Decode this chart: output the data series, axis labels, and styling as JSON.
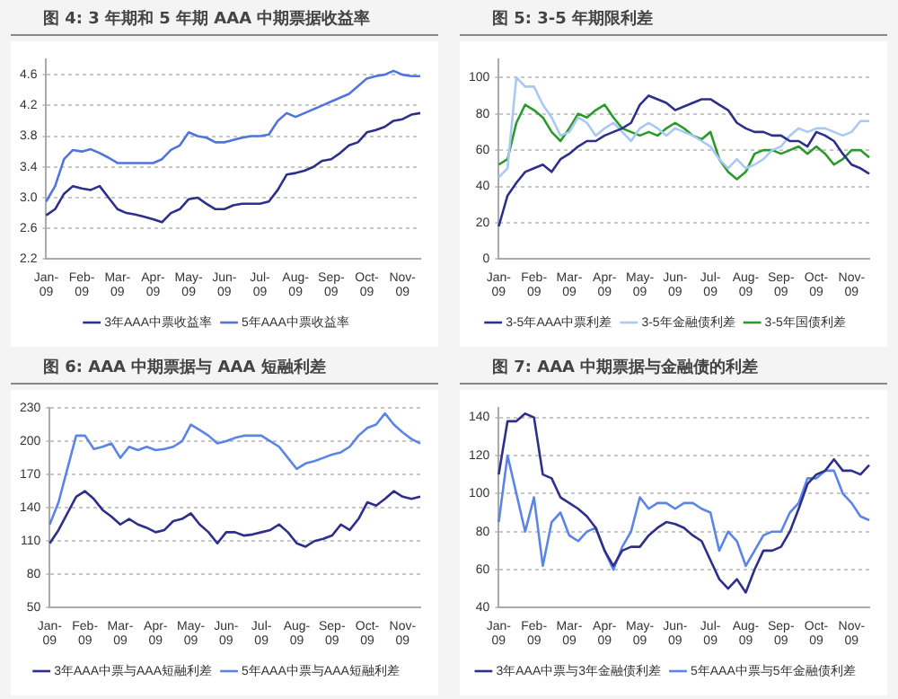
{
  "chart_data": [
    {
      "type": "line",
      "title": "图 4: 3 年期和 5 年期 AAA 中期票据收益率",
      "categories": [
        "Jan-09",
        null,
        null,
        null,
        "Feb-09",
        null,
        null,
        null,
        "Mar-09",
        null,
        null,
        null,
        "Apr-09",
        null,
        null,
        null,
        "May-09",
        null,
        null,
        null,
        "Jun-09",
        null,
        null,
        null,
        "Jul-09",
        null,
        null,
        null,
        "Aug-09",
        null,
        null,
        null,
        "Sep-09",
        null,
        null,
        null,
        "Oct-09",
        null,
        null,
        null,
        "Nov-09",
        null,
        null
      ],
      "series": [
        {
          "name": "3年AAA中票收益率",
          "color": "#2e2f8a",
          "values": [
            2.77,
            2.85,
            3.05,
            3.15,
            3.12,
            3.1,
            3.15,
            3.0,
            2.85,
            2.8,
            2.78,
            2.75,
            2.72,
            2.68,
            2.8,
            2.85,
            2.98,
            3.0,
            2.92,
            2.85,
            2.85,
            2.9,
            2.92,
            2.92,
            2.92,
            2.95,
            3.1,
            3.3,
            3.32,
            3.35,
            3.4,
            3.48,
            3.5,
            3.58,
            3.68,
            3.72,
            3.85,
            3.88,
            3.92,
            4.0,
            4.02,
            4.08,
            4.1
          ]
        },
        {
          "name": "5年AAA中票收益率",
          "color": "#4f74dd",
          "values": [
            2.95,
            3.15,
            3.5,
            3.62,
            3.6,
            3.63,
            3.58,
            3.52,
            3.45,
            3.45,
            3.45,
            3.45,
            3.45,
            3.5,
            3.62,
            3.68,
            3.85,
            3.8,
            3.78,
            3.72,
            3.72,
            3.75,
            3.78,
            3.8,
            3.8,
            3.82,
            4.0,
            4.1,
            4.05,
            4.1,
            4.15,
            4.2,
            4.25,
            4.3,
            4.35,
            4.45,
            4.55,
            4.58,
            4.6,
            4.65,
            4.6,
            4.58,
            4.58
          ]
        }
      ],
      "ylim": [
        2.2,
        4.8
      ],
      "yticks": [
        2.2,
        2.6,
        {
          "value": 3,
          "label": "3.0"
        },
        3.4,
        3.8,
        4.2,
        4.6
      ],
      "grid": "y",
      "legend": "bottom",
      "marker": "none"
    },
    {
      "type": "line",
      "title": "图 5: 3-5 年期限利差",
      "categories": [
        "Jan-09",
        null,
        null,
        null,
        "Feb-09",
        null,
        null,
        null,
        "Mar-09",
        null,
        null,
        null,
        "Apr-09",
        null,
        null,
        null,
        "May-09",
        null,
        null,
        null,
        "Jun-09",
        null,
        null,
        null,
        "Jul-09",
        null,
        null,
        null,
        "Aug-09",
        null,
        null,
        null,
        "Sep-09",
        null,
        null,
        null,
        "Oct-09",
        null,
        null,
        null,
        "Nov-09",
        null,
        null
      ],
      "series": [
        {
          "name": "3-5年AAA中票利差",
          "color": "#2e2f8a",
          "values": [
            18,
            35,
            42,
            48,
            50,
            52,
            48,
            55,
            58,
            62,
            65,
            65,
            68,
            70,
            72,
            75,
            85,
            90,
            88,
            86,
            82,
            84,
            86,
            88,
            88,
            85,
            82,
            75,
            72,
            70,
            70,
            68,
            68,
            65,
            65,
            62,
            70,
            68,
            65,
            58,
            52,
            50,
            47
          ]
        },
        {
          "name": "3-5年金融债利差",
          "color": "#a9c9f2",
          "values": [
            45,
            50,
            100,
            95,
            95,
            85,
            78,
            68,
            70,
            78,
            75,
            68,
            72,
            75,
            70,
            65,
            72,
            75,
            72,
            68,
            72,
            70,
            68,
            65,
            62,
            55,
            50,
            55,
            50,
            52,
            55,
            60,
            62,
            68,
            72,
            70,
            72,
            72,
            70,
            68,
            70,
            76,
            76
          ]
        },
        {
          "name": "3-5年国债利差",
          "color": "#2a9a2a",
          "values": [
            52,
            55,
            75,
            85,
            82,
            78,
            70,
            65,
            72,
            80,
            78,
            82,
            85,
            78,
            72,
            70,
            68,
            70,
            68,
            72,
            75,
            72,
            68,
            66,
            70,
            55,
            48,
            44,
            48,
            58,
            60,
            60,
            58,
            60,
            62,
            58,
            62,
            58,
            52,
            55,
            60,
            60,
            56
          ]
        }
      ],
      "ylim": [
        0,
        110
      ],
      "yticks": [
        0,
        20,
        40,
        60,
        80,
        100
      ],
      "grid": "y",
      "legend": "bottom",
      "marker": "none"
    },
    {
      "type": "line",
      "title": "图 6: AAA 中期票据与 AAA 短融利差",
      "categories": [
        "Jan-09",
        null,
        null,
        null,
        "Feb-09",
        null,
        null,
        null,
        "Mar-09",
        null,
        null,
        null,
        "Apr-09",
        null,
        null,
        null,
        "May-09",
        null,
        null,
        null,
        "Jun-09",
        null,
        null,
        null,
        "Jul-09",
        null,
        null,
        null,
        "Aug-09",
        null,
        null,
        null,
        "Sep-09",
        null,
        null,
        null,
        "Oct-09",
        null,
        null,
        null,
        "Nov-09",
        null,
        null
      ],
      "series": [
        {
          "name": "3年AAA中票与AAA短融利差",
          "color": "#2e2f8a",
          "values": [
            108,
            120,
            135,
            150,
            155,
            148,
            138,
            132,
            125,
            130,
            125,
            122,
            118,
            120,
            128,
            130,
            135,
            125,
            118,
            108,
            118,
            118,
            115,
            116,
            118,
            120,
            125,
            118,
            108,
            105,
            110,
            112,
            115,
            125,
            120,
            130,
            145,
            142,
            148,
            155,
            150,
            148,
            150
          ]
        },
        {
          "name": "5年AAA中票与AAA短融利差",
          "color": "#5b84e8",
          "values": [
            125,
            145,
            175,
            205,
            205,
            193,
            195,
            198,
            185,
            195,
            192,
            195,
            192,
            193,
            195,
            200,
            215,
            210,
            205,
            198,
            200,
            203,
            205,
            205,
            205,
            200,
            195,
            185,
            175,
            180,
            182,
            185,
            188,
            190,
            195,
            205,
            212,
            215,
            225,
            215,
            208,
            202,
            198
          ]
        }
      ],
      "ylim": [
        50,
        230
      ],
      "yticks": [
        50,
        80,
        110,
        140,
        170,
        200,
        230
      ],
      "grid": "y",
      "legend": "bottom",
      "marker": "none"
    },
    {
      "type": "line",
      "title": "图 7: AAA 中期票据与金融债的利差",
      "categories": [
        "Jan-09",
        null,
        null,
        null,
        "Feb-09",
        null,
        null,
        null,
        "Mar-09",
        null,
        null,
        null,
        "Apr-09",
        null,
        null,
        null,
        "May-09",
        null,
        null,
        null,
        "Jun-09",
        null,
        null,
        null,
        "Jul-09",
        null,
        null,
        null,
        "Aug-09",
        null,
        null,
        null,
        "Sep-09",
        null,
        null,
        null,
        "Oct-09",
        null,
        null,
        null,
        "Nov-09",
        null,
        null
      ],
      "series": [
        {
          "name": "3年AAA中票与3年金融债利差",
          "color": "#2e2f8a",
          "values": [
            110,
            138,
            138,
            142,
            140,
            110,
            108,
            98,
            95,
            92,
            88,
            82,
            70,
            62,
            70,
            72,
            72,
            78,
            82,
            85,
            84,
            82,
            78,
            75,
            65,
            55,
            50,
            55,
            48,
            60,
            70,
            70,
            72,
            80,
            92,
            105,
            110,
            112,
            118,
            112,
            112,
            110,
            115
          ]
        },
        {
          "name": "5年AAA中票与5年金融债利差",
          "color": "#5b84e8",
          "values": [
            85,
            120,
            100,
            80,
            98,
            62,
            85,
            90,
            78,
            75,
            80,
            82,
            70,
            60,
            72,
            80,
            98,
            92,
            95,
            95,
            92,
            95,
            95,
            92,
            90,
            70,
            80,
            75,
            62,
            70,
            78,
            80,
            80,
            90,
            95,
            108,
            108,
            112,
            112,
            100,
            95,
            88,
            86
          ]
        }
      ],
      "ylim": [
        40,
        145
      ],
      "yticks": [
        40,
        60,
        80,
        100,
        120,
        140
      ],
      "grid": "y",
      "legend": "bottom",
      "marker": "none"
    }
  ]
}
